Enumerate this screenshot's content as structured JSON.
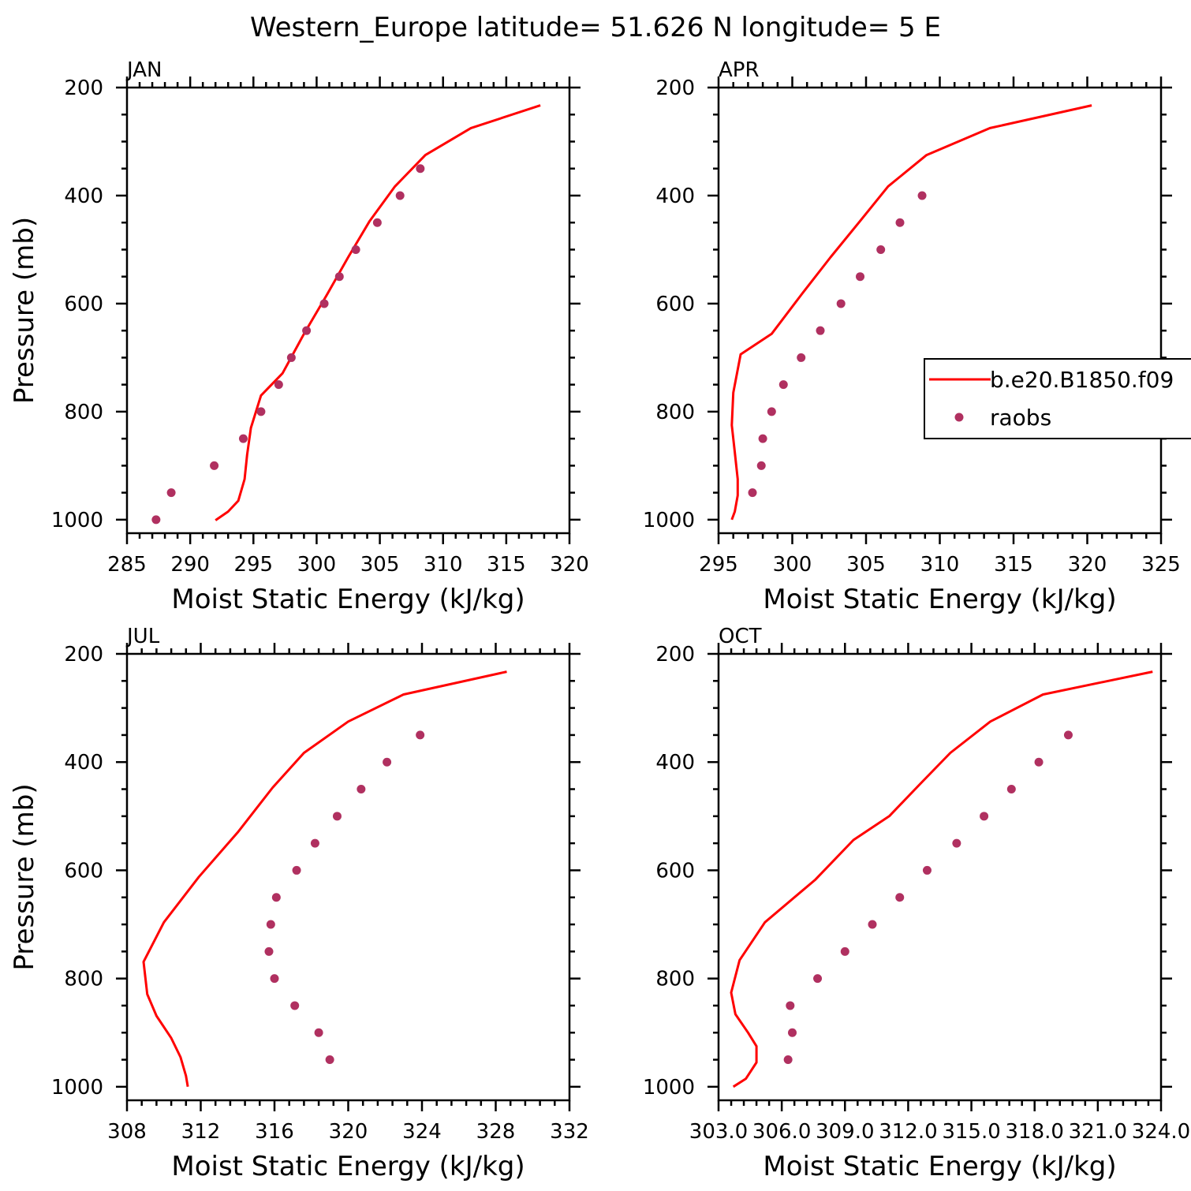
{
  "title": "Western_Europe  latitude= 51.626 N longitude= 5 E",
  "colors": {
    "model": "#ff0000",
    "obs": "#b03060",
    "axis": "#000000"
  },
  "legend": {
    "placement": "right-middle (APR panel)",
    "entries": [
      {
        "label": "b.e20.B1850.f09",
        "style": "line",
        "color": "#ff0000"
      },
      {
        "label": "raobs",
        "style": "marker",
        "color": "#b03060"
      }
    ]
  },
  "chart_data": [
    {
      "type": "line",
      "panel_label": "JAN",
      "xlabel": "Moist Static Energy (kJ/kg)",
      "ylabel": "Pressure (mb)",
      "xlim": [
        285,
        320
      ],
      "xticks": [
        285,
        290,
        295,
        300,
        305,
        310,
        315,
        320
      ],
      "xtick_labels": [
        "285",
        "290",
        "295",
        "300",
        "305",
        "310",
        "315",
        "320"
      ],
      "ylim": [
        1025,
        200
      ],
      "yticks": [
        200,
        400,
        600,
        800,
        1000
      ],
      "yticks_labels": [
        "200",
        "400",
        "600",
        "800",
        "1000"
      ],
      "series": [
        {
          "name": "b.e20.B1850.f09",
          "style": "line",
          "x": [
            317.7,
            312.2,
            308.6,
            306.2,
            304.2,
            302.5,
            300.8,
            299.0,
            297.3,
            295.6,
            294.8,
            294.5,
            294.3,
            293.8,
            293.0,
            292.0
          ],
          "y": [
            233,
            275,
            325,
            383,
            447,
            514,
            584,
            656,
            729,
            770,
            830,
            880,
            925,
            965,
            985,
            1001
          ]
        },
        {
          "name": "raobs",
          "style": "markers",
          "x": [
            308.2,
            306.6,
            304.8,
            303.1,
            301.8,
            300.6,
            299.2,
            298.0,
            297.0,
            295.6,
            294.2,
            291.9,
            288.5,
            287.3
          ],
          "y": [
            350,
            400,
            450,
            500,
            550,
            600,
            650,
            700,
            750,
            800,
            850,
            900,
            950,
            1000
          ]
        }
      ]
    },
    {
      "type": "line",
      "panel_label": "APR",
      "xlabel": "Moist Static Energy (kJ/kg)",
      "ylabel": "",
      "xlim": [
        295,
        325
      ],
      "xticks": [
        295,
        300,
        305,
        310,
        315,
        320,
        325
      ],
      "xtick_labels": [
        "295",
        "300",
        "305",
        "310",
        "315",
        "320",
        "325"
      ],
      "ylim": [
        1025,
        200
      ],
      "yticks": [
        200,
        400,
        600,
        800,
        1000
      ],
      "yticks_labels": [
        "200",
        "400",
        "600",
        "800",
        "1000"
      ],
      "series": [
        {
          "name": "b.e20.B1850.f09",
          "style": "line",
          "x": [
            320.3,
            313.4,
            309.1,
            306.5,
            304.6,
            302.6,
            300.6,
            298.6,
            296.5,
            296.0,
            295.9,
            296.1,
            296.3,
            296.3,
            296.1,
            295.9
          ],
          "y": [
            233,
            275,
            325,
            383,
            447,
            514,
            584,
            656,
            694,
            765,
            825,
            875,
            925,
            955,
            985,
            1000
          ]
        },
        {
          "name": "raobs",
          "style": "markers",
          "x": [
            308.8,
            307.3,
            306.0,
            304.6,
            303.3,
            301.9,
            300.6,
            299.4,
            298.6,
            298.0,
            297.9,
            297.3
          ],
          "y": [
            400,
            450,
            500,
            550,
            600,
            650,
            700,
            750,
            800,
            850,
            900,
            950
          ]
        }
      ]
    },
    {
      "type": "line",
      "panel_label": "JUL",
      "xlabel": "Moist Static Energy (kJ/kg)",
      "ylabel": "Pressure (mb)",
      "xlim": [
        308,
        332
      ],
      "xticks": [
        308,
        312,
        316,
        320,
        324,
        328,
        332
      ],
      "xtick_labels": [
        "308",
        "312",
        "316",
        "320",
        "324",
        "328",
        "332"
      ],
      "ylim": [
        1025,
        200
      ],
      "yticks": [
        200,
        400,
        600,
        800,
        1000
      ],
      "yticks_labels": [
        "200",
        "400",
        "600",
        "800",
        "1000"
      ],
      "series": [
        {
          "name": "b.e20.B1850.f09",
          "style": "line",
          "x": [
            328.6,
            323.0,
            320.0,
            317.6,
            315.9,
            314.0,
            311.9,
            310.0,
            308.9,
            309.1,
            309.6,
            310.4,
            310.9,
            311.2,
            311.3
          ],
          "y": [
            233,
            275,
            325,
            383,
            447,
            530,
            612,
            696,
            769,
            829,
            869,
            910,
            945,
            980,
            1000
          ]
        },
        {
          "name": "raobs",
          "style": "markers",
          "x": [
            323.9,
            322.1,
            320.7,
            319.4,
            318.2,
            317.2,
            316.1,
            315.8,
            315.7,
            316.0,
            317.1,
            318.4,
            319.0
          ],
          "y": [
            350,
            400,
            450,
            500,
            550,
            600,
            650,
            700,
            750,
            800,
            850,
            900,
            950
          ]
        }
      ]
    },
    {
      "type": "line",
      "panel_label": "OCT",
      "xlabel": "Moist Static Energy (kJ/kg)",
      "ylabel": "",
      "xlim": [
        303.0,
        324.0
      ],
      "xticks": [
        303.0,
        306.0,
        309.0,
        312.0,
        315.0,
        318.0,
        321.0,
        324.0
      ],
      "xtick_labels": [
        "303.0",
        "306.0",
        "309.0",
        "312.0",
        "315.0",
        "318.0",
        "321.0",
        "324.0"
      ],
      "ylim": [
        1025,
        200
      ],
      "yticks": [
        200,
        400,
        600,
        800,
        1000
      ],
      "yticks_labels": [
        "200",
        "400",
        "600",
        "800",
        "1000"
      ],
      "series": [
        {
          "name": "b.e20.B1850.f09",
          "style": "line",
          "x": [
            323.6,
            318.4,
            315.9,
            314.0,
            312.6,
            311.1,
            309.4,
            307.6,
            305.2,
            304.0,
            303.6,
            303.8,
            304.4,
            304.8,
            304.8,
            304.3,
            303.7
          ],
          "y": [
            233,
            275,
            325,
            383,
            439,
            500,
            544,
            617,
            696,
            766,
            826,
            866,
            900,
            925,
            955,
            985,
            1000
          ]
        },
        {
          "name": "raobs",
          "style": "markers",
          "x": [
            319.6,
            318.2,
            316.9,
            315.6,
            314.3,
            312.9,
            311.6,
            310.3,
            309.0,
            307.7,
            306.4,
            306.5,
            306.3
          ],
          "y": [
            350,
            400,
            450,
            500,
            550,
            600,
            650,
            700,
            750,
            800,
            850,
            900,
            950
          ]
        }
      ]
    }
  ]
}
